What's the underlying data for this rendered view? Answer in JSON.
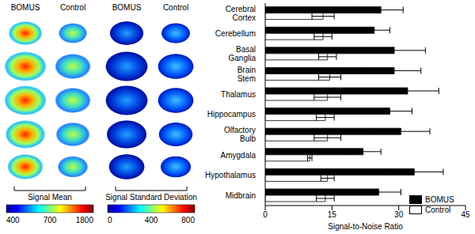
{
  "chart_data": {
    "type": "bar",
    "orientation": "horizontal",
    "xlabel": "Signal-to-Noise Ratio",
    "categories": [
      "Cerebral Cortex",
      "Cerebellum",
      "Basal Ganglia",
      "Brain Stem",
      "Thalamus",
      "Hippocampus",
      "Olfactory Bulb",
      "Amygdala",
      "Hypothalamus",
      "Midbrain"
    ],
    "series": [
      {
        "name": "BOMUS",
        "color": "#000000",
        "values": [
          26,
          24.5,
          29,
          29,
          32,
          28,
          30.5,
          22,
          33.5,
          25.5
        ],
        "errors": [
          5,
          3.5,
          7,
          6,
          7,
          5,
          6.5,
          4,
          6.5,
          5
        ]
      },
      {
        "name": "Control",
        "color": "#ffffff",
        "values": [
          13,
          13,
          14,
          14.5,
          14,
          13.5,
          14,
          10,
          14,
          13.5
        ],
        "errors": [
          2.5,
          2,
          2,
          2.5,
          3,
          2,
          3,
          0.5,
          1.5,
          2
        ]
      }
    ],
    "xlim": [
      0,
      45
    ],
    "xticks": [
      0,
      15,
      30,
      45
    ],
    "legend": "lower right",
    "grid": false
  },
  "image_panel": {
    "columns": [
      "BOMUS",
      "Control",
      "BOMUS",
      "Control"
    ],
    "colorbars": [
      {
        "label": "Signal Mean",
        "ticks": [
          400,
          700,
          1800
        ]
      },
      {
        "label": "Signal Standard Deviation",
        "ticks": [
          0,
          400,
          800
        ]
      }
    ]
  }
}
